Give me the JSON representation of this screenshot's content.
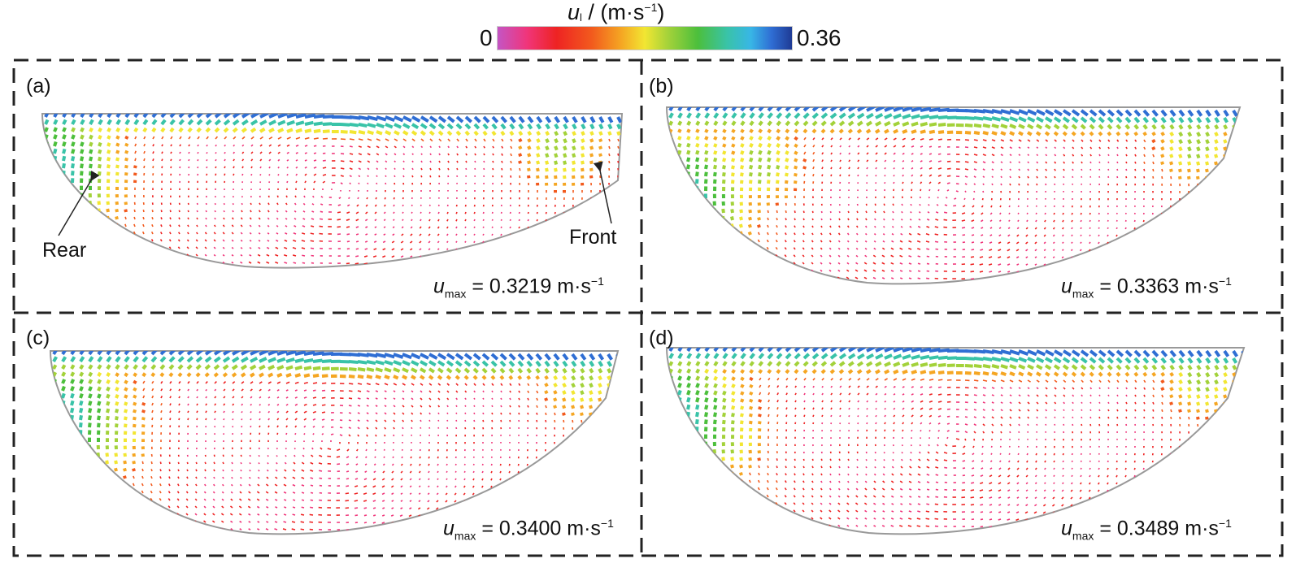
{
  "colorbar": {
    "symbol": "u",
    "subscript": "l",
    "unit_open": " / (m·s",
    "unit_exp": "−1",
    "unit_close": ")",
    "min": "0",
    "max": "0.36"
  },
  "panels": [
    {
      "label": "(a)",
      "umax_value": "= 0.3219 m·s",
      "exp": "−1"
    },
    {
      "label": "(b)",
      "umax_value": "= 0.3363 m·s",
      "exp": "−1"
    },
    {
      "label": "(c)",
      "umax_value": "= 0.3400 m·s",
      "exp": "−1"
    },
    {
      "label": "(d)",
      "umax_value": "= 0.3489 m·s",
      "exp": "−1"
    }
  ],
  "umax_symbol": "u",
  "umax_subscript": "max",
  "annotations": {
    "rear": "Rear",
    "front": "Front"
  },
  "colors": {
    "pool_outline": "#999999",
    "frame": "#222222"
  }
}
